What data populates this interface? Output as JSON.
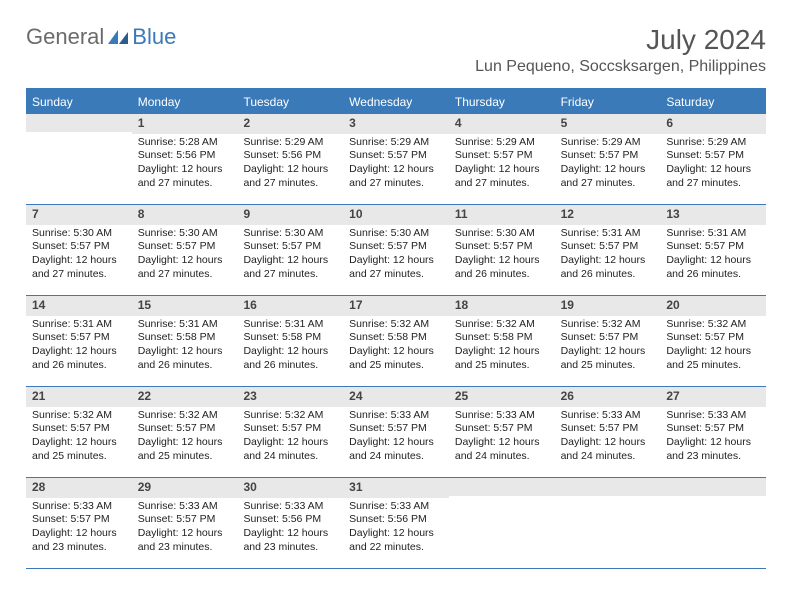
{
  "brand": {
    "general": "General",
    "blue": "Blue"
  },
  "title": "July 2024",
  "location": "Lun Pequeno, Soccsksargen, Philippines",
  "colors": {
    "accent": "#3a7ab8",
    "header_bg": "#3a7ab8",
    "daynum_bg": "#e8e8e8",
    "text": "#222222",
    "title_color": "#555555",
    "bg": "#ffffff"
  },
  "day_headers": [
    "Sunday",
    "Monday",
    "Tuesday",
    "Wednesday",
    "Thursday",
    "Friday",
    "Saturday"
  ],
  "cells": [
    {
      "n": "",
      "sr": "",
      "ss": "",
      "dl": ""
    },
    {
      "n": "1",
      "sr": "Sunrise: 5:28 AM",
      "ss": "Sunset: 5:56 PM",
      "dl": "Daylight: 12 hours and 27 minutes."
    },
    {
      "n": "2",
      "sr": "Sunrise: 5:29 AM",
      "ss": "Sunset: 5:56 PM",
      "dl": "Daylight: 12 hours and 27 minutes."
    },
    {
      "n": "3",
      "sr": "Sunrise: 5:29 AM",
      "ss": "Sunset: 5:57 PM",
      "dl": "Daylight: 12 hours and 27 minutes."
    },
    {
      "n": "4",
      "sr": "Sunrise: 5:29 AM",
      "ss": "Sunset: 5:57 PM",
      "dl": "Daylight: 12 hours and 27 minutes."
    },
    {
      "n": "5",
      "sr": "Sunrise: 5:29 AM",
      "ss": "Sunset: 5:57 PM",
      "dl": "Daylight: 12 hours and 27 minutes."
    },
    {
      "n": "6",
      "sr": "Sunrise: 5:29 AM",
      "ss": "Sunset: 5:57 PM",
      "dl": "Daylight: 12 hours and 27 minutes."
    },
    {
      "n": "7",
      "sr": "Sunrise: 5:30 AM",
      "ss": "Sunset: 5:57 PM",
      "dl": "Daylight: 12 hours and 27 minutes."
    },
    {
      "n": "8",
      "sr": "Sunrise: 5:30 AM",
      "ss": "Sunset: 5:57 PM",
      "dl": "Daylight: 12 hours and 27 minutes."
    },
    {
      "n": "9",
      "sr": "Sunrise: 5:30 AM",
      "ss": "Sunset: 5:57 PM",
      "dl": "Daylight: 12 hours and 27 minutes."
    },
    {
      "n": "10",
      "sr": "Sunrise: 5:30 AM",
      "ss": "Sunset: 5:57 PM",
      "dl": "Daylight: 12 hours and 27 minutes."
    },
    {
      "n": "11",
      "sr": "Sunrise: 5:30 AM",
      "ss": "Sunset: 5:57 PM",
      "dl": "Daylight: 12 hours and 26 minutes."
    },
    {
      "n": "12",
      "sr": "Sunrise: 5:31 AM",
      "ss": "Sunset: 5:57 PM",
      "dl": "Daylight: 12 hours and 26 minutes."
    },
    {
      "n": "13",
      "sr": "Sunrise: 5:31 AM",
      "ss": "Sunset: 5:57 PM",
      "dl": "Daylight: 12 hours and 26 minutes."
    },
    {
      "n": "14",
      "sr": "Sunrise: 5:31 AM",
      "ss": "Sunset: 5:57 PM",
      "dl": "Daylight: 12 hours and 26 minutes."
    },
    {
      "n": "15",
      "sr": "Sunrise: 5:31 AM",
      "ss": "Sunset: 5:58 PM",
      "dl": "Daylight: 12 hours and 26 minutes."
    },
    {
      "n": "16",
      "sr": "Sunrise: 5:31 AM",
      "ss": "Sunset: 5:58 PM",
      "dl": "Daylight: 12 hours and 26 minutes."
    },
    {
      "n": "17",
      "sr": "Sunrise: 5:32 AM",
      "ss": "Sunset: 5:58 PM",
      "dl": "Daylight: 12 hours and 25 minutes."
    },
    {
      "n": "18",
      "sr": "Sunrise: 5:32 AM",
      "ss": "Sunset: 5:58 PM",
      "dl": "Daylight: 12 hours and 25 minutes."
    },
    {
      "n": "19",
      "sr": "Sunrise: 5:32 AM",
      "ss": "Sunset: 5:57 PM",
      "dl": "Daylight: 12 hours and 25 minutes."
    },
    {
      "n": "20",
      "sr": "Sunrise: 5:32 AM",
      "ss": "Sunset: 5:57 PM",
      "dl": "Daylight: 12 hours and 25 minutes."
    },
    {
      "n": "21",
      "sr": "Sunrise: 5:32 AM",
      "ss": "Sunset: 5:57 PM",
      "dl": "Daylight: 12 hours and 25 minutes."
    },
    {
      "n": "22",
      "sr": "Sunrise: 5:32 AM",
      "ss": "Sunset: 5:57 PM",
      "dl": "Daylight: 12 hours and 25 minutes."
    },
    {
      "n": "23",
      "sr": "Sunrise: 5:32 AM",
      "ss": "Sunset: 5:57 PM",
      "dl": "Daylight: 12 hours and 24 minutes."
    },
    {
      "n": "24",
      "sr": "Sunrise: 5:33 AM",
      "ss": "Sunset: 5:57 PM",
      "dl": "Daylight: 12 hours and 24 minutes."
    },
    {
      "n": "25",
      "sr": "Sunrise: 5:33 AM",
      "ss": "Sunset: 5:57 PM",
      "dl": "Daylight: 12 hours and 24 minutes."
    },
    {
      "n": "26",
      "sr": "Sunrise: 5:33 AM",
      "ss": "Sunset: 5:57 PM",
      "dl": "Daylight: 12 hours and 24 minutes."
    },
    {
      "n": "27",
      "sr": "Sunrise: 5:33 AM",
      "ss": "Sunset: 5:57 PM",
      "dl": "Daylight: 12 hours and 23 minutes."
    },
    {
      "n": "28",
      "sr": "Sunrise: 5:33 AM",
      "ss": "Sunset: 5:57 PM",
      "dl": "Daylight: 12 hours and 23 minutes."
    },
    {
      "n": "29",
      "sr": "Sunrise: 5:33 AM",
      "ss": "Sunset: 5:57 PM",
      "dl": "Daylight: 12 hours and 23 minutes."
    },
    {
      "n": "30",
      "sr": "Sunrise: 5:33 AM",
      "ss": "Sunset: 5:56 PM",
      "dl": "Daylight: 12 hours and 23 minutes."
    },
    {
      "n": "31",
      "sr": "Sunrise: 5:33 AM",
      "ss": "Sunset: 5:56 PM",
      "dl": "Daylight: 12 hours and 22 minutes."
    },
    {
      "n": "",
      "sr": "",
      "ss": "",
      "dl": ""
    },
    {
      "n": "",
      "sr": "",
      "ss": "",
      "dl": ""
    },
    {
      "n": "",
      "sr": "",
      "ss": "",
      "dl": ""
    }
  ]
}
